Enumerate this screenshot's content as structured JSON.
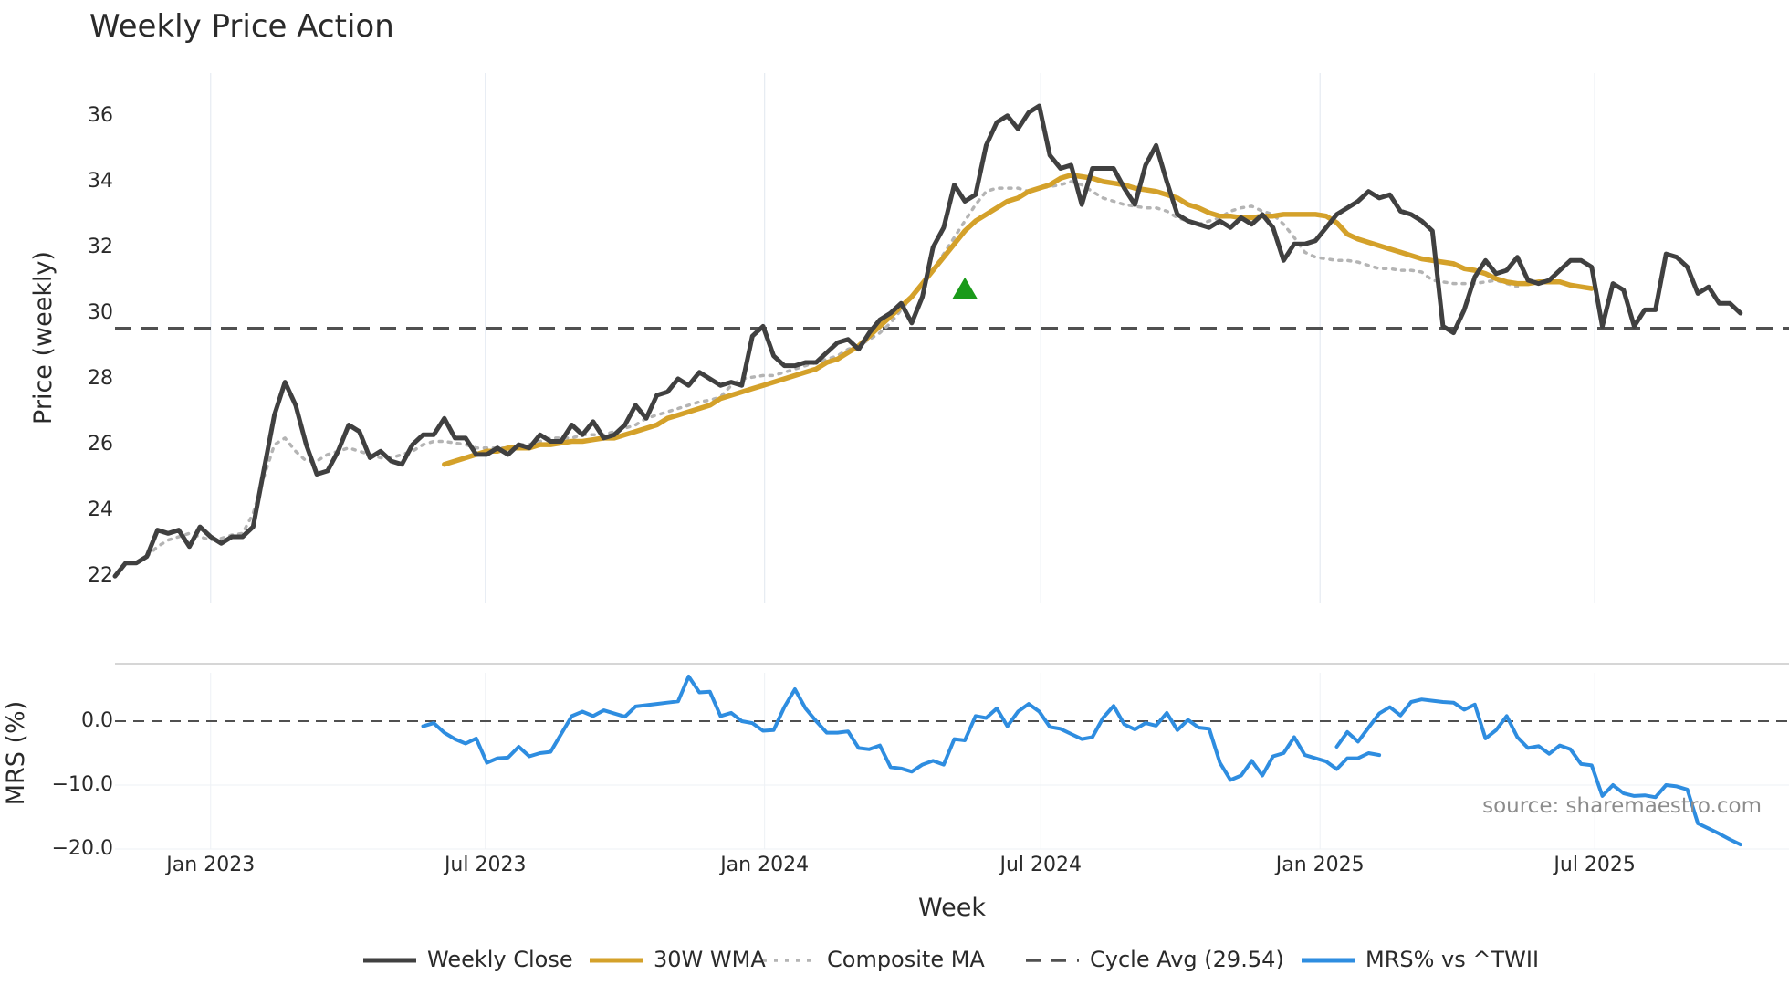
{
  "chart_data": {
    "type": "line",
    "title": "Weekly Price Action",
    "xlabel": "Week",
    "source": "source: sharemaestro.com",
    "x_ticks": [
      {
        "date": "2023-01-01",
        "label": "Jan 2023"
      },
      {
        "date": "2023-07-01",
        "label": "Jul 2023"
      },
      {
        "date": "2024-01-01",
        "label": "Jan 2024"
      },
      {
        "date": "2024-07-01",
        "label": "Jul 2024"
      },
      {
        "date": "2025-01-01",
        "label": "Jan 2025"
      },
      {
        "date": "2025-07-01",
        "label": "Jul 2025"
      }
    ],
    "x_range": [
      "2022-10-30",
      "2025-11-06"
    ],
    "price_panel": {
      "ylabel": "Price (weekly)",
      "ylim": [
        21.2,
        37.3
      ],
      "yticks": [
        "22",
        "24",
        "26",
        "28",
        "30",
        "32",
        "34",
        "36"
      ],
      "cycle_avg": 29.54,
      "signal": {
        "date": "2024-05-12",
        "value": 30.7,
        "marker": "triangle-up",
        "color": "#1a9a1a"
      },
      "series": [
        {
          "name": "Weekly Close",
          "color": "#404040",
          "style": "solid",
          "start": "2022-10-30",
          "values": [
            22.0,
            22.4,
            22.4,
            22.6,
            23.4,
            23.3,
            23.4,
            22.9,
            23.5,
            23.2,
            23.0,
            23.2,
            23.2,
            23.5,
            25.2,
            26.9,
            27.9,
            27.2,
            26.0,
            25.1,
            25.2,
            25.8,
            26.6,
            26.4,
            25.6,
            25.8,
            25.5,
            25.4,
            26.0,
            26.3,
            26.3,
            26.8,
            26.2,
            26.2,
            25.7,
            25.7,
            25.9,
            25.7,
            26.0,
            25.9,
            26.3,
            26.1,
            26.1,
            26.6,
            26.3,
            26.7,
            26.2,
            26.3,
            26.6,
            27.2,
            26.8,
            27.5,
            27.6,
            28.0,
            27.8,
            28.2,
            28.0,
            27.8,
            27.9,
            27.8,
            29.3,
            29.6,
            28.7,
            28.4,
            28.4,
            28.5,
            28.5,
            28.8,
            29.1,
            29.2,
            28.9,
            29.4,
            29.8,
            30.0,
            30.3,
            29.7,
            30.5,
            32.0,
            32.6,
            33.9,
            33.4,
            33.6,
            35.1,
            35.8,
            36.0,
            35.6,
            36.1,
            36.3,
            34.8,
            34.4,
            34.5,
            33.3,
            34.4,
            34.4,
            34.4,
            33.8,
            33.3,
            34.5,
            35.1,
            34.0,
            33.0,
            32.8,
            32.7,
            32.6,
            32.8,
            32.6,
            32.9,
            32.7,
            33.0,
            32.6,
            31.6,
            32.1,
            32.1,
            32.2,
            32.6,
            33.0,
            33.2,
            33.4,
            33.7,
            33.5,
            33.6,
            33.1,
            33.0,
            32.8,
            32.5,
            29.6,
            29.4,
            30.1,
            31.1,
            31.6,
            31.2,
            31.3,
            31.7,
            31.0,
            30.9,
            31.0,
            31.3,
            31.6,
            31.6,
            31.4,
            29.6,
            30.9,
            30.7,
            29.6,
            30.1,
            30.1,
            31.8,
            31.7,
            31.4,
            30.6,
            30.8,
            30.3,
            30.3,
            30.0
          ]
        },
        {
          "name": "30W WMA",
          "color": "#d4a12a",
          "style": "solid",
          "start": "2023-06-04",
          "values": [
            25.4,
            25.5,
            25.6,
            25.7,
            25.8,
            25.8,
            25.9,
            25.9,
            25.9,
            26.0,
            26.0,
            26.05,
            26.1,
            26.1,
            26.15,
            26.2,
            26.2,
            26.3,
            26.4,
            26.5,
            26.6,
            26.8,
            26.9,
            27.0,
            27.1,
            27.2,
            27.4,
            27.5,
            27.6,
            27.7,
            27.8,
            27.9,
            28.0,
            28.1,
            28.2,
            28.3,
            28.5,
            28.6,
            28.8,
            29.0,
            29.3,
            29.6,
            29.9,
            30.2,
            30.5,
            30.9,
            31.3,
            31.7,
            32.1,
            32.5,
            32.8,
            33.0,
            33.2,
            33.4,
            33.5,
            33.7,
            33.8,
            33.9,
            34.1,
            34.2,
            34.15,
            34.1,
            34.0,
            33.95,
            33.9,
            33.8,
            33.75,
            33.7,
            33.6,
            33.5,
            33.3,
            33.2,
            33.05,
            32.95,
            32.95,
            32.9,
            32.9,
            32.95,
            32.95,
            33.0,
            33.0,
            33.0,
            33.0,
            32.95,
            32.75,
            32.4,
            32.25,
            32.15,
            32.05,
            31.95,
            31.85,
            31.75,
            31.65,
            31.6,
            31.55,
            31.5,
            31.35,
            31.3,
            31.2,
            31.05,
            30.95,
            30.9,
            30.9,
            30.95,
            30.95,
            30.95,
            30.85,
            30.8,
            30.75
          ]
        },
        {
          "name": "Composite MA",
          "color": "#b4b4b4",
          "style": "dotted",
          "start": "2022-11-20",
          "values": [
            22.6,
            22.9,
            23.1,
            23.2,
            23.3,
            23.2,
            23.1,
            23.15,
            23.25,
            23.3,
            23.9,
            25.0,
            26.0,
            26.2,
            25.8,
            25.5,
            25.5,
            25.7,
            25.8,
            25.9,
            25.8,
            25.7,
            25.6,
            25.6,
            25.7,
            25.8,
            26.0,
            26.1,
            26.1,
            26.05,
            26.0,
            25.9,
            25.9,
            25.9,
            25.9,
            26.0,
            26.0,
            26.1,
            26.2,
            26.2,
            26.2,
            26.3,
            26.3,
            26.3,
            26.4,
            26.5,
            26.6,
            26.8,
            26.9,
            27.0,
            27.1,
            27.2,
            27.3,
            27.35,
            27.45,
            27.8,
            28.0,
            28.05,
            28.1,
            28.1,
            28.2,
            28.3,
            28.4,
            28.5,
            28.6,
            28.7,
            28.9,
            29.0,
            29.2,
            29.4,
            29.7,
            30.1,
            30.5,
            30.9,
            31.3,
            31.8,
            32.3,
            32.8,
            33.3,
            33.7,
            33.8,
            33.8,
            33.8,
            33.7,
            33.8,
            33.85,
            33.9,
            34.0,
            33.9,
            33.7,
            33.5,
            33.4,
            33.3,
            33.25,
            33.2,
            33.2,
            33.1,
            32.9,
            32.8,
            32.7,
            32.8,
            32.9,
            33.1,
            33.2,
            33.25,
            33.1,
            33.0,
            32.7,
            32.3,
            31.85,
            31.7,
            31.65,
            31.6,
            31.6,
            31.55,
            31.45,
            31.35,
            31.35,
            31.3,
            31.3,
            31.25,
            31.0,
            30.95,
            30.9,
            30.9,
            30.9,
            30.95,
            31.0,
            30.9,
            30.8
          ]
        }
      ]
    },
    "mrs_panel": {
      "ylabel": "MRS (%)",
      "ylim": [
        -20.0,
        9.0
      ],
      "yticks": [
        "0.0",
        "−10.0",
        "−20.0"
      ],
      "series": {
        "name": "MRS% vs ^TWII",
        "color": "#2e8de0",
        "style": "solid",
        "segments": [
          {
            "start": "2023-05-21",
            "values": [
              -0.8,
              -0.3,
              -1.8,
              -2.8,
              -3.5,
              -2.7,
              -6.5,
              -5.8,
              -5.7,
              -4.0,
              -5.5,
              -5.0,
              -4.8,
              -2.0,
              0.8,
              1.5,
              0.8,
              1.7,
              1.2,
              0.7,
              2.3,
              2.5,
              2.7,
              2.9,
              3.1,
              7.0,
              4.5,
              4.6,
              0.8,
              1.3,
              0.0,
              -0.3,
              -1.5,
              -1.4,
              2.2,
              5.0,
              2.0,
              0.0,
              -1.8,
              -1.8,
              -1.6,
              -4.2,
              -4.4,
              -3.8,
              -7.2,
              -7.4,
              -7.9,
              -6.8,
              -6.2,
              -6.8,
              -2.8,
              -3.0,
              0.8,
              0.5,
              2.0,
              -0.8,
              1.5,
              2.7,
              1.5,
              -0.9,
              -1.2,
              -2.0,
              -2.8,
              -2.5,
              0.5,
              2.4,
              -0.5,
              -1.3,
              -0.3,
              -0.7,
              1.3,
              -1.4,
              0.2,
              -1.0,
              -1.2,
              -6.5,
              -9.2,
              -8.5,
              -6.2,
              -8.5,
              -5.5,
              -5.0,
              -2.5,
              -5.3,
              -5.8,
              -6.3,
              -7.5,
              -5.8,
              -5.8,
              -5.0,
              -5.3
            ]
          },
          {
            "start": "2025-01-12",
            "values": [
              -4.0,
              -1.7,
              -3.2,
              -1.0,
              1.2,
              2.2,
              0.9,
              3.0,
              3.4,
              3.2,
              3.0,
              2.9,
              1.8,
              2.6,
              -2.7,
              -1.4,
              0.8,
              -2.5,
              -4.2,
              -3.9,
              -5.1,
              -3.8,
              -4.4,
              -6.7,
              -6.9,
              -11.7,
              -10.0,
              -11.3,
              -11.7,
              -11.6,
              -11.9,
              -10.0,
              -10.2,
              -10.7,
              -16.0,
              -16.8,
              -17.6,
              -18.5,
              -19.3
            ]
          }
        ]
      }
    },
    "legend": [
      {
        "label": "Weekly Close",
        "color": "#404040",
        "style": "solid"
      },
      {
        "label": "30W WMA",
        "color": "#d4a12a",
        "style": "solid"
      },
      {
        "label": "Composite MA",
        "color": "#b4b4b4",
        "style": "dotted"
      },
      {
        "label": "Cycle Avg (29.54)",
        "color": "#505050",
        "style": "dashed"
      },
      {
        "label": "MRS% vs ^TWII",
        "color": "#2e8de0",
        "style": "solid"
      }
    ]
  }
}
